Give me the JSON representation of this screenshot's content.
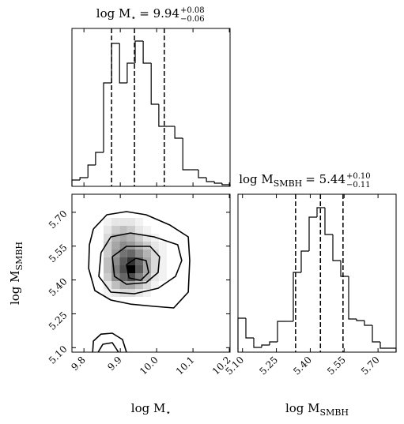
{
  "chart_data": [
    {
      "type": "histogram",
      "title": {
        "main": "log M",
        "sub": "⋆",
        "value": "= 9.94",
        "upper": "+0.08",
        "lower": "−0.06"
      },
      "bins": [
        9.767,
        9.789,
        9.811,
        9.832,
        9.854,
        9.876,
        9.898,
        9.919,
        9.941,
        9.963,
        9.985,
        10.006,
        10.028,
        10.05,
        10.072,
        10.093,
        10.115,
        10.137,
        10.159,
        10.18,
        10.202
      ],
      "counts": [
        8,
        11,
        27,
        43,
        131,
        181,
        131,
        156,
        184,
        156,
        104,
        76,
        76,
        61,
        21,
        21,
        11,
        6,
        4,
        2
      ],
      "quantiles": [
        9.876,
        9.939,
        10.021
      ],
      "xlim": [
        9.767,
        10.202
      ],
      "ylim": [
        0,
        200
      ],
      "color": "#000000"
    },
    {
      "type": "hist2d",
      "xlabel": {
        "main": "log M",
        "sub": "⋆"
      },
      "ylabel": {
        "main": "log M",
        "sub": "SMBH"
      },
      "xlim": [
        9.767,
        10.202
      ],
      "ylim": [
        5.08,
        5.78
      ],
      "xticks": [
        9.8,
        9.9,
        {
          "value": 10,
          "label": "10.0"
        },
        10.1,
        10.2
      ],
      "yticks": [
        {
          "value": 5.1,
          "label": "5.10"
        },
        5.25,
        {
          "value": 5.4,
          "label": "5.40"
        },
        5.55,
        {
          "value": 5.7,
          "label": "5.70"
        }
      ],
      "density": {
        "x": [
          9.854,
          9.876,
          9.898,
          9.919,
          9.941,
          9.963,
          9.985,
          10.006,
          10.028
        ],
        "y": [
          5.675,
          5.64,
          5.605,
          5.57,
          5.535,
          5.5,
          5.465,
          5.43,
          5.395,
          5.36,
          5.325
        ],
        "values": [
          [
            0.05,
            0.1,
            0.1,
            0.1,
            0.05,
            0,
            0,
            0
          ],
          [
            0.1,
            0.2,
            0.25,
            0.2,
            0.1,
            0.05,
            0,
            0
          ],
          [
            0.15,
            0.3,
            0.35,
            0.3,
            0.2,
            0.1,
            0.05,
            0
          ],
          [
            0.2,
            0.35,
            0.45,
            0.4,
            0.3,
            0.2,
            0.1,
            0.05
          ],
          [
            0.2,
            0.4,
            0.55,
            0.6,
            0.45,
            0.3,
            0.15,
            0.05
          ],
          [
            0.25,
            0.45,
            0.65,
            0.8,
            0.6,
            0.35,
            0.15,
            0.05
          ],
          [
            0.25,
            0.5,
            0.7,
            1,
            0.65,
            0.35,
            0.15,
            0.05
          ],
          [
            0.2,
            0.45,
            0.6,
            0.7,
            0.5,
            0.3,
            0.1,
            0.05
          ],
          [
            0.1,
            0.25,
            0.35,
            0.35,
            0.25,
            0.15,
            0.05,
            0
          ],
          [
            0.05,
            0.1,
            0.15,
            0.15,
            0.1,
            0.05,
            0,
            0
          ]
        ]
      },
      "contours": [
        {
          "x": [
            9.826,
            9.863,
            9.917,
            9.971,
            10.037,
            10.087,
            10.091,
            10.087,
            10.047,
            9.993,
            9.928,
            9.874,
            9.83,
            9.813,
            9.815,
            9.826
          ],
          "y": [
            5.626,
            5.689,
            5.703,
            5.689,
            5.643,
            5.591,
            5.486,
            5.346,
            5.276,
            5.283,
            5.293,
            5.311,
            5.353,
            5.451,
            5.556,
            5.626
          ]
        },
        {
          "x": [
            9.847,
            9.874,
            9.928,
            9.993,
            10.058,
            10.069,
            10.052,
            10.004,
            9.939,
            9.874,
            9.841,
            9.847
          ],
          "y": [
            5.521,
            5.591,
            5.608,
            5.591,
            5.556,
            5.486,
            5.416,
            5.363,
            5.339,
            5.346,
            5.416,
            5.521
          ]
        },
        {
          "x": [
            9.878,
            9.917,
            9.982,
            10.008,
            10.004,
            9.971,
            9.917,
            9.884,
            9.878
          ],
          "y": [
            5.503,
            5.549,
            5.549,
            5.503,
            5.433,
            5.388,
            5.381,
            5.416,
            5.503
          ]
        },
        {
          "x": [
            9.917,
            9.943,
            9.971,
            9.978,
            9.956,
            9.924,
            9.917
          ],
          "y": [
            5.468,
            5.496,
            5.486,
            5.433,
            5.398,
            5.409,
            5.468
          ]
        },
        {
          "x": [
            9.824,
            9.826,
            9.847,
            9.878,
            9.906,
            9.917
          ],
          "y": [
            5.08,
            5.129,
            5.16,
            5.164,
            5.136,
            5.08
          ]
        },
        {
          "x": [
            9.839,
            9.852,
            9.878,
            9.895
          ],
          "y": [
            5.08,
            5.115,
            5.122,
            5.08
          ]
        }
      ],
      "color": "#000000"
    },
    {
      "type": "histogram",
      "title": {
        "main": "log M",
        "sub": "SMBH",
        "value": "= 5.44",
        "upper": "+0.10",
        "lower": "−0.11"
      },
      "xlabel": {
        "main": "log M",
        "sub": "SMBH"
      },
      "bins": [
        5.08,
        5.115,
        5.15,
        5.185,
        5.22,
        5.255,
        5.29,
        5.325,
        5.36,
        5.395,
        5.43,
        5.465,
        5.5,
        5.535,
        5.57,
        5.605,
        5.64,
        5.675,
        5.71,
        5.745,
        5.78
      ],
      "counts": [
        43,
        18,
        6,
        9,
        13,
        39,
        39,
        101,
        128,
        171,
        183,
        149,
        116,
        96,
        42,
        40,
        34,
        13,
        5,
        5
      ],
      "quantiles": [
        5.335,
        5.445,
        5.545
      ],
      "xlim": [
        5.08,
        5.78
      ],
      "ylim": [
        0,
        200
      ],
      "xticks": [
        {
          "value": 5.1,
          "label": "5.10"
        },
        5.25,
        {
          "value": 5.4,
          "label": "5.40"
        },
        5.55,
        {
          "value": 5.7,
          "label": "5.70"
        }
      ],
      "color": "#000000"
    }
  ]
}
